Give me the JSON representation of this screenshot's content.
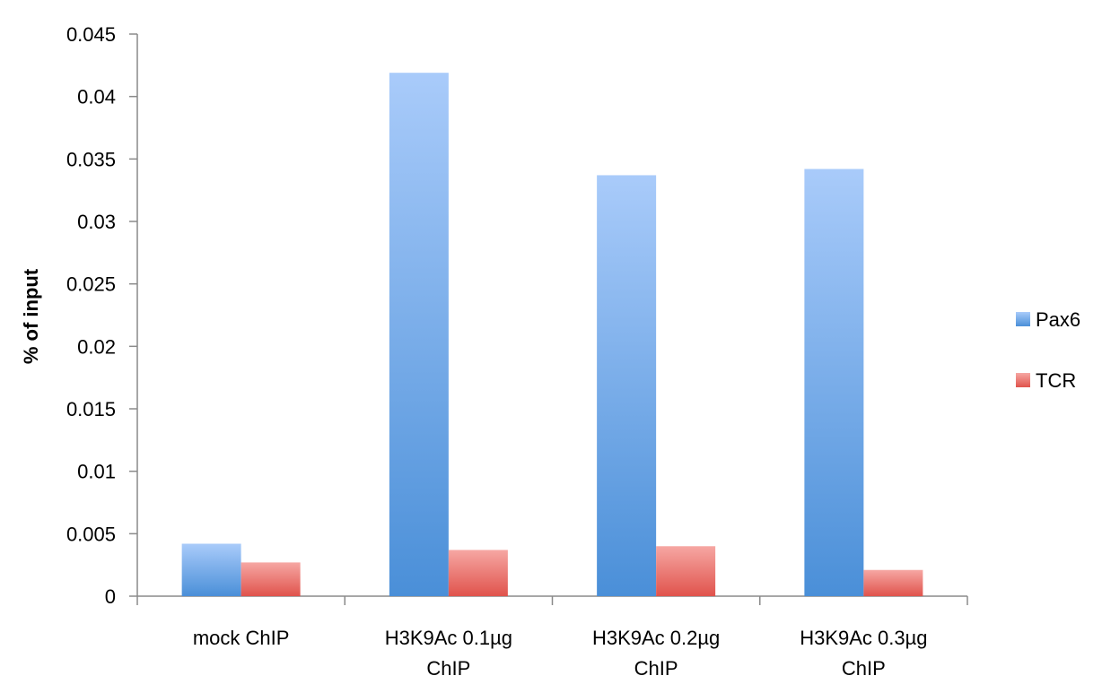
{
  "chart_data": {
    "type": "bar",
    "title": "",
    "xlabel": "",
    "ylabel": "% of input",
    "ylim": [
      0,
      0.045
    ],
    "yticks": [
      "0",
      "0.005",
      "0.01",
      "0.015",
      "0.02",
      "0.025",
      "0.03",
      "0.035",
      "0.04",
      "0.045"
    ],
    "grid": false,
    "legend_position": "right",
    "categories": [
      [
        "mock ChIP"
      ],
      [
        "H3K9Ac 0.1µg",
        "ChIP"
      ],
      [
        "H3K9Ac 0.2µg",
        "ChIP"
      ],
      [
        "H3K9Ac 0.3µg",
        "ChIP"
      ]
    ],
    "series": [
      {
        "name": "Pax6",
        "color_top": "#a9cbfa",
        "color_bottom": "#4a8fd8",
        "values": [
          0.0042,
          0.0419,
          0.0337,
          0.0342
        ]
      },
      {
        "name": "TCR",
        "color_top": "#f6a7a3",
        "color_bottom": "#e0534c",
        "values": [
          0.0027,
          0.0037,
          0.004,
          0.0021
        ]
      }
    ]
  }
}
